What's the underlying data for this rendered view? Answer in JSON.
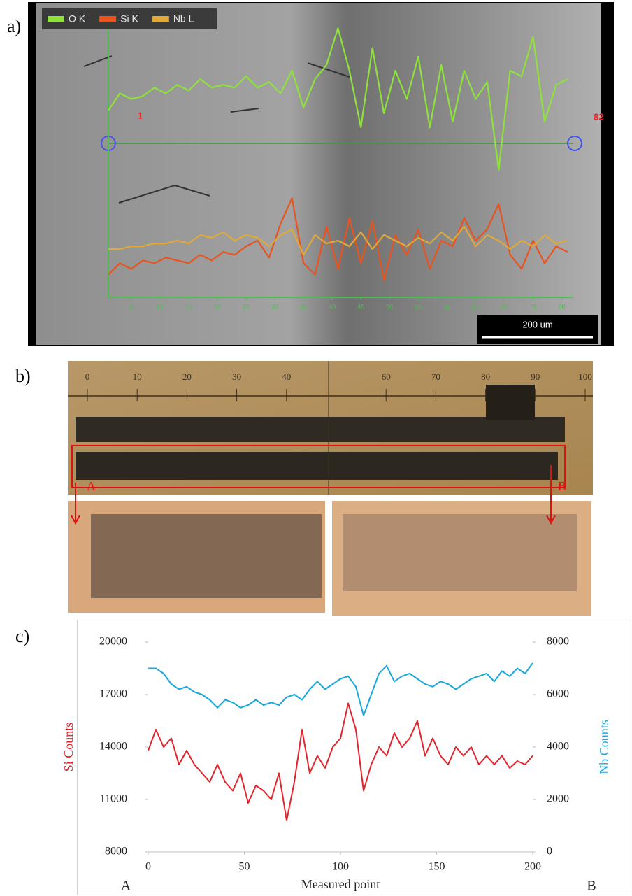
{
  "chart_data": [
    {
      "type": "line",
      "panel_label": "a)",
      "x": [
        1,
        3,
        5,
        7,
        9,
        11,
        13,
        15,
        17,
        19,
        21,
        23,
        25,
        27,
        29,
        31,
        33,
        35,
        37,
        39,
        41,
        43,
        45,
        47,
        49,
        51,
        53,
        55,
        57,
        59,
        61,
        63,
        65,
        67,
        69,
        71,
        73,
        75,
        77,
        79,
        81
      ],
      "xlim": [
        1,
        82
      ],
      "xticks": [
        5,
        10,
        15,
        20,
        25,
        30,
        35,
        40,
        45,
        50,
        55,
        60,
        65,
        70,
        75,
        80
      ],
      "ylim": [
        0,
        100
      ],
      "series": [
        {
          "name": "O K",
          "color": "#8fe23a",
          "values": [
            66,
            72,
            70,
            71,
            74,
            72,
            75,
            73,
            77,
            74,
            75,
            74,
            78,
            74,
            76,
            72,
            80,
            67,
            77,
            82,
            95,
            80,
            60,
            88,
            65,
            80,
            70,
            85,
            60,
            82,
            62,
            80,
            70,
            76,
            45,
            80,
            78,
            92,
            62,
            75,
            77
          ]
        },
        {
          "name": "Si K",
          "color": "#e8531e",
          "values": [
            8,
            12,
            10,
            13,
            12,
            14,
            13,
            12,
            15,
            13,
            16,
            15,
            18,
            20,
            14,
            26,
            35,
            12,
            8,
            25,
            10,
            28,
            12,
            27,
            6,
            22,
            15,
            24,
            10,
            20,
            18,
            28,
            20,
            24,
            33,
            15,
            10,
            20,
            12,
            18,
            16
          ]
        },
        {
          "name": "Nb L",
          "color": "#e0a93a",
          "values": [
            17,
            17,
            18,
            18,
            19,
            19,
            20,
            19,
            22,
            21,
            23,
            20,
            22,
            21,
            18,
            22,
            24,
            15,
            22,
            19,
            20,
            18,
            23,
            17,
            22,
            20,
            18,
            21,
            19,
            23,
            20,
            25,
            18,
            22,
            20,
            17,
            20,
            18,
            22,
            19,
            20
          ]
        }
      ],
      "legend": "top-left",
      "start_label": "1",
      "end_label": "82",
      "scale_bar": "200 um"
    },
    {
      "type": "line",
      "panel_label": "c)",
      "x": [
        0,
        4,
        8,
        12,
        16,
        20,
        24,
        28,
        32,
        36,
        40,
        44,
        48,
        52,
        56,
        60,
        64,
        68,
        72,
        76,
        80,
        84,
        88,
        92,
        96,
        100,
        104,
        108,
        112,
        116,
        120,
        124,
        128,
        132,
        136,
        140,
        144,
        148,
        152,
        156,
        160,
        164,
        168,
        172,
        176,
        180,
        184,
        188,
        192,
        196,
        200
      ],
      "xlim": [
        0,
        200
      ],
      "xticks": [
        0,
        50,
        100,
        150,
        200
      ],
      "ylim": [
        8000,
        20000
      ],
      "yticks": [
        8000,
        11000,
        14000,
        17000,
        20000
      ],
      "y2lim": [
        0,
        8000
      ],
      "y2ticks": [
        0,
        2000,
        4000,
        6000,
        8000
      ],
      "x_label": "Measured point",
      "y_label": "Si Counts",
      "y2_label": "Nb Counts",
      "start_label": "A",
      "end_label": "B",
      "series": [
        {
          "name": "Si Counts",
          "color": "#e4232b",
          "values": [
            13800,
            15000,
            14000,
            14500,
            13000,
            13800,
            13000,
            12500,
            12000,
            13000,
            12000,
            11500,
            12500,
            10800,
            11800,
            11500,
            11000,
            12500,
            9800,
            12000,
            15000,
            12500,
            13500,
            12800,
            14000,
            14500,
            16500,
            15000,
            11500,
            13000,
            14000,
            13500,
            14800,
            14000,
            14500,
            15500,
            13500,
            14500,
            13500,
            13000,
            14000,
            13500,
            14000,
            13000,
            13500,
            13000,
            13500,
            12800,
            13200,
            13000,
            13500
          ]
        },
        {
          "name": "Nb Counts",
          "color": "#1aa7dc",
          "axis": "y2",
          "values": [
            7000,
            7000,
            6800,
            6400,
            6200,
            6300,
            6100,
            6000,
            5800,
            5500,
            5800,
            5700,
            5500,
            5600,
            5800,
            5600,
            5700,
            5600,
            5900,
            6000,
            5800,
            6200,
            6500,
            6200,
            6400,
            6600,
            6700,
            6300,
            5200,
            6000,
            6800,
            7100,
            6500,
            6700,
            6800,
            6600,
            6400,
            6300,
            6500,
            6400,
            6200,
            6400,
            6600,
            6700,
            6800,
            6500,
            6900,
            6700,
            7000,
            6800,
            7200
          ]
        }
      ]
    }
  ],
  "photo_panel": {
    "panel_label": "b)",
    "ruler": [
      0,
      10,
      20,
      30,
      40,
      60,
      70,
      80,
      90,
      100
    ],
    "start_label": "A",
    "end_label": "B"
  }
}
